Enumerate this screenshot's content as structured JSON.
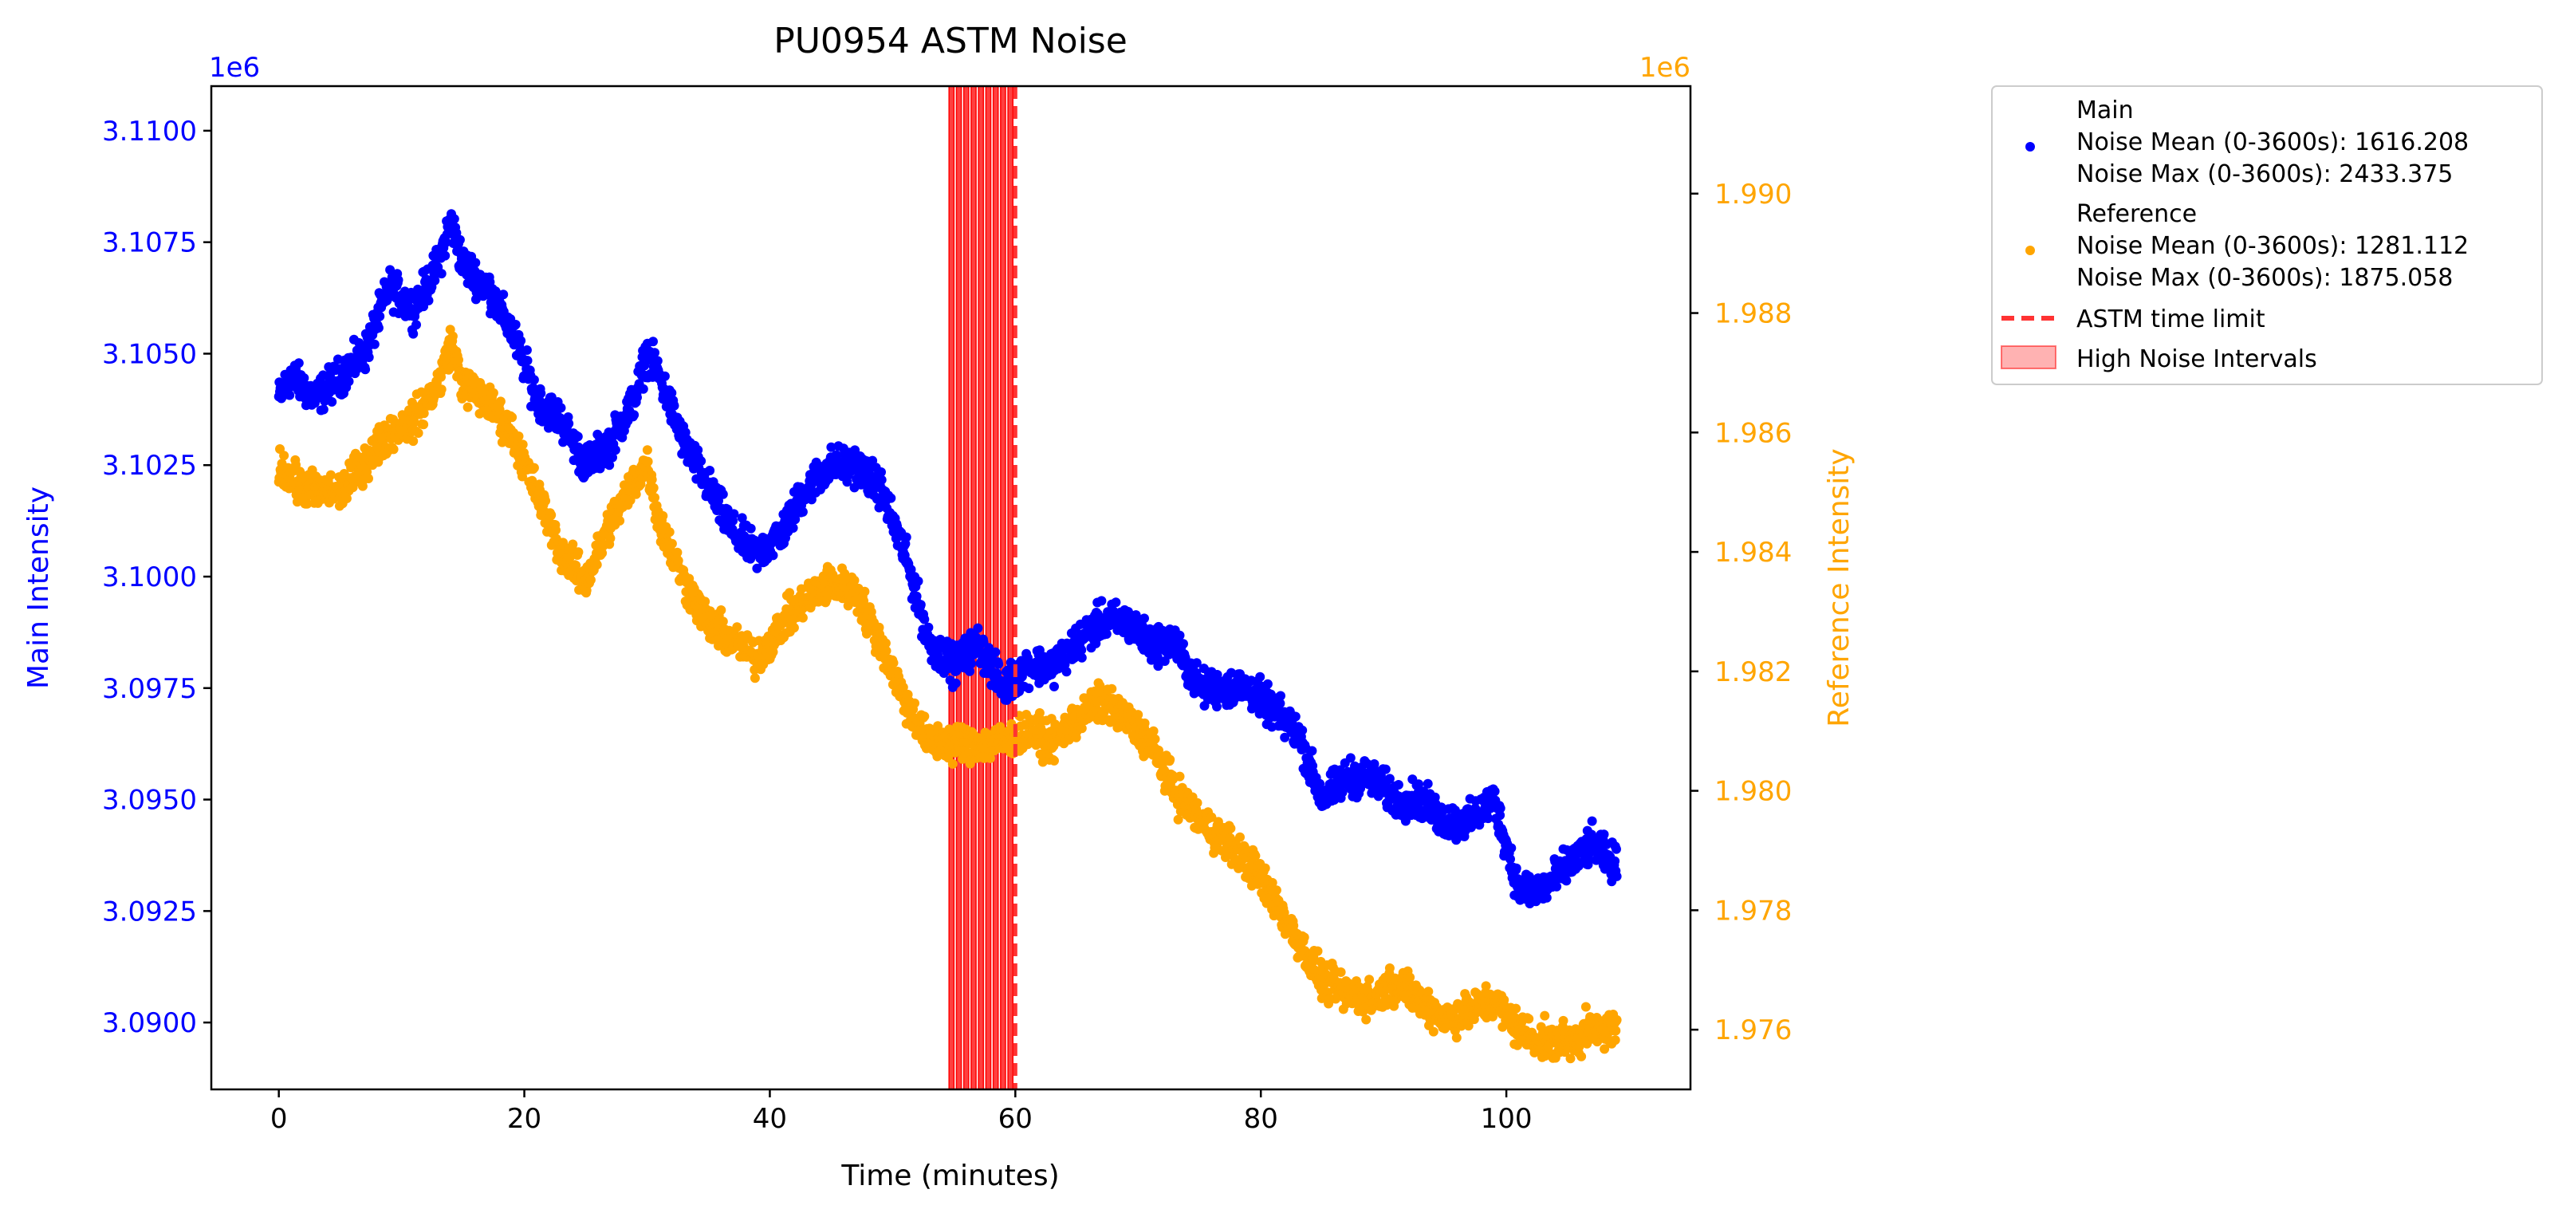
{
  "chart_data": {
    "type": "scatter",
    "title": "PU0954 ASTM Noise",
    "xlabel": "Time (minutes)",
    "ylabel_left": "Main Intensity",
    "ylabel_right": "Reference Intensity",
    "left_offset_text": "1e6",
    "right_offset_text": "1e6",
    "xlim": [
      -5.5,
      115
    ],
    "ylim_left": [
      3.0885,
      3.111
    ],
    "ylim_right": [
      1.975,
      1.9918
    ],
    "x_ticks": [
      0,
      20,
      40,
      60,
      80,
      100
    ],
    "x_tick_labels": [
      "0",
      "20",
      "40",
      "60",
      "80",
      "100"
    ],
    "y_left_ticks": [
      3.09,
      3.0925,
      3.095,
      3.0975,
      3.1,
      3.1025,
      3.105,
      3.1075,
      3.11
    ],
    "y_left_tick_labels": [
      "3.0900",
      "3.0925",
      "3.0950",
      "3.0975",
      "3.1000",
      "3.1025",
      "3.1050",
      "3.1075",
      "3.1100"
    ],
    "y_right_ticks": [
      1.976,
      1.978,
      1.98,
      1.982,
      1.984,
      1.986,
      1.988,
      1.99
    ],
    "y_right_tick_labels": [
      "1.976",
      "1.978",
      "1.980",
      "1.982",
      "1.984",
      "1.986",
      "1.988",
      "1.990"
    ],
    "colors": {
      "main": "#0000ff",
      "reference": "#ffa500",
      "limit": "#ff3333",
      "interval": "#ff0000"
    },
    "series": [
      {
        "name": "Main",
        "axis": "left",
        "color": "#0000ff",
        "noise": 0.0004,
        "x": [
          0,
          1,
          3,
          5,
          7,
          9,
          11,
          13,
          14,
          15,
          17,
          19,
          21,
          23,
          25,
          27,
          29,
          30,
          31,
          33,
          35,
          37,
          39,
          41,
          43,
          45,
          47,
          49,
          51,
          53,
          55,
          57,
          59,
          61,
          63,
          65,
          67,
          69,
          71,
          73,
          75,
          77,
          79,
          81,
          83,
          85,
          87,
          89,
          91,
          93,
          95,
          97,
          99,
          101,
          103,
          105,
          107,
          109
        ],
        "y": [
          3.104,
          3.1045,
          3.104,
          3.1045,
          3.105,
          3.1065,
          3.106,
          3.107,
          3.108,
          3.107,
          3.1065,
          3.1055,
          3.104,
          3.1035,
          3.1025,
          3.103,
          3.104,
          3.105,
          3.1045,
          3.103,
          3.102,
          3.101,
          3.1005,
          3.101,
          3.102,
          3.1025,
          3.1025,
          3.102,
          3.1005,
          3.0985,
          3.098,
          3.0985,
          3.0975,
          3.098,
          3.098,
          3.0985,
          3.099,
          3.099,
          3.0985,
          3.0985,
          3.0975,
          3.0975,
          3.0975,
          3.097,
          3.0965,
          3.095,
          3.0955,
          3.0955,
          3.095,
          3.095,
          3.0945,
          3.0945,
          3.095,
          3.093,
          3.093,
          3.0935,
          3.094,
          3.0935
        ]
      },
      {
        "name": "Reference",
        "axis": "right",
        "color": "#ffa500",
        "noise": 0.0003,
        "x": [
          0,
          1,
          3,
          5,
          7,
          9,
          11,
          13,
          14,
          15,
          17,
          19,
          21,
          23,
          25,
          27,
          29,
          30,
          31,
          33,
          35,
          37,
          39,
          41,
          43,
          45,
          47,
          49,
          51,
          53,
          55,
          57,
          59,
          61,
          63,
          65,
          67,
          69,
          71,
          73,
          75,
          77,
          79,
          81,
          83,
          85,
          87,
          89,
          91,
          93,
          95,
          97,
          99,
          101,
          103,
          105,
          107,
          109
        ],
        "y": [
          1.9855,
          1.9852,
          1.985,
          1.985,
          1.9855,
          1.986,
          1.9862,
          1.9868,
          1.9875,
          1.9868,
          1.9865,
          1.986,
          1.985,
          1.984,
          1.9835,
          1.9845,
          1.9852,
          1.9855,
          1.9845,
          1.9835,
          1.9828,
          1.9825,
          1.9822,
          1.9828,
          1.9832,
          1.9835,
          1.9833,
          1.9825,
          1.9815,
          1.9808,
          1.9808,
          1.9808,
          1.9808,
          1.981,
          1.9808,
          1.9812,
          1.9815,
          1.9812,
          1.9808,
          1.98,
          1.9795,
          1.9792,
          1.9788,
          1.9782,
          1.9775,
          1.9768,
          1.9766,
          1.9765,
          1.9768,
          1.9765,
          1.9762,
          1.9763,
          1.9765,
          1.976,
          1.9758,
          1.9758,
          1.976,
          1.976
        ]
      }
    ],
    "astm_time_limit": 60,
    "high_noise_intervals": [
      [
        54.6,
        55.0
      ],
      [
        55.2,
        55.6
      ],
      [
        55.8,
        56.2
      ],
      [
        56.4,
        56.8
      ],
      [
        57.0,
        57.4
      ],
      [
        57.6,
        58.0
      ],
      [
        58.2,
        58.6
      ],
      [
        58.8,
        59.2
      ],
      [
        59.4,
        59.8
      ]
    ],
    "legend": {
      "placement": "outside upper right",
      "entries": [
        {
          "kind": "marker",
          "color": "#0000ff",
          "lines": [
            "Main",
            "Noise Mean (0-3600s): 1616.208",
            "Noise Max (0-3600s): 2433.375"
          ]
        },
        {
          "kind": "marker",
          "color": "#ffa500",
          "lines": [
            "Reference",
            "Noise Mean (0-3600s): 1281.112",
            "Noise Max (0-3600s): 1875.058"
          ]
        },
        {
          "kind": "dashed-line",
          "color": "#ff3333",
          "lines": [
            "ASTM time limit"
          ]
        },
        {
          "kind": "patch",
          "color": "#ff0000",
          "lines": [
            "High Noise Intervals"
          ]
        }
      ]
    }
  }
}
